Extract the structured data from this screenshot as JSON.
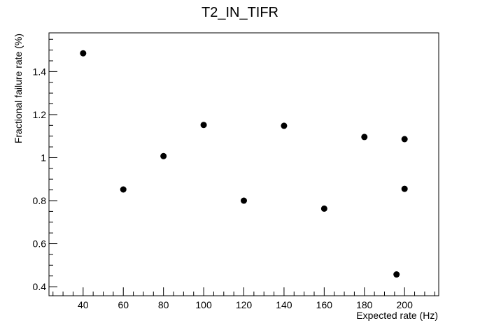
{
  "chart_data": {
    "type": "scatter",
    "title": "T2_IN_TIFR",
    "xlabel": "Expected rate (Hz)",
    "ylabel": "Fractional failure rate (%)",
    "xlim": [
      23,
      217
    ],
    "ylim": [
      0.358,
      1.58
    ],
    "x_ticks": [
      40,
      60,
      80,
      100,
      120,
      140,
      160,
      180,
      200
    ],
    "y_ticks": [
      0.4,
      0.6,
      0.8,
      1,
      1.2,
      1.4
    ],
    "x_tick_labels": [
      "40",
      "60",
      "80",
      "100",
      "120",
      "140",
      "160",
      "180",
      "200"
    ],
    "y_tick_labels": [
      "0.4",
      "0.6",
      "0.8",
      "1",
      "1.2",
      "1.4"
    ],
    "grid": false,
    "marker_color": "#000000",
    "points": [
      {
        "x": 40,
        "y": 1.485
      },
      {
        "x": 60,
        "y": 0.852
      },
      {
        "x": 80,
        "y": 1.007
      },
      {
        "x": 100,
        "y": 1.152
      },
      {
        "x": 120,
        "y": 0.8
      },
      {
        "x": 140,
        "y": 1.148
      },
      {
        "x": 160,
        "y": 0.763
      },
      {
        "x": 180,
        "y": 1.096
      },
      {
        "x": 196,
        "y": 0.457
      },
      {
        "x": 200,
        "y": 1.086
      },
      {
        "x": 200,
        "y": 0.855
      }
    ]
  }
}
